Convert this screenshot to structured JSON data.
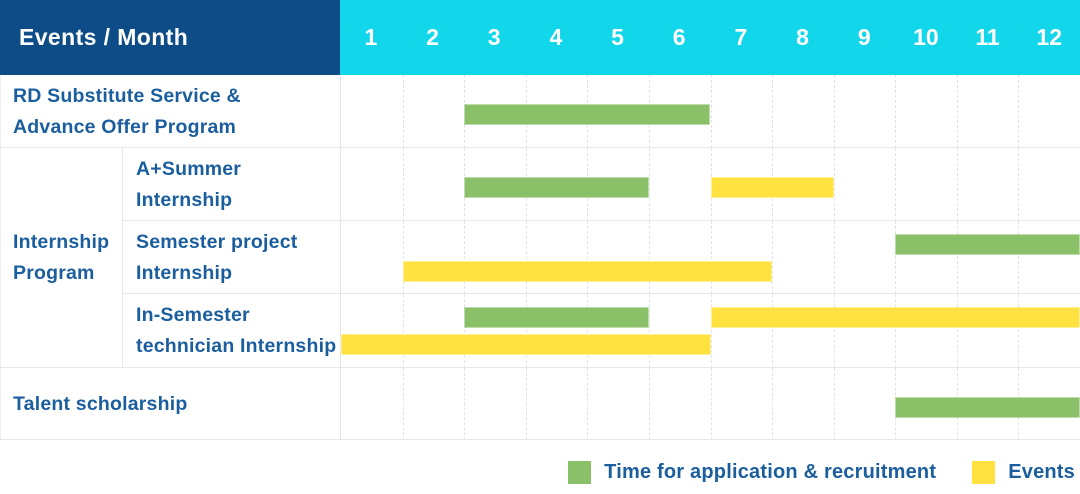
{
  "title": "Events / Month",
  "months": [
    "1",
    "2",
    "3",
    "4",
    "5",
    "6",
    "7",
    "8",
    "9",
    "10",
    "11",
    "12"
  ],
  "colors": {
    "header_bg": "#0d4c86",
    "header_text": "#ffffff",
    "months_bg": "#12d7ea",
    "text_blue": "#1b5e9e",
    "green": "#8ac168",
    "yellow": "#ffe23f",
    "grid": "#e7e7e7"
  },
  "legend": [
    {
      "swatch": "green",
      "label": "Time for application & recruitment"
    },
    {
      "swatch": "yellow",
      "label": "Events"
    }
  ],
  "chart_data": {
    "type": "gantt",
    "title": "Events / Month",
    "x_axis": {
      "unit": "month",
      "range": [
        1,
        12
      ],
      "ticks": [
        1,
        2,
        3,
        4,
        5,
        6,
        7,
        8,
        9,
        10,
        11,
        12
      ]
    },
    "grid": true,
    "legend_position": "bottom-right",
    "series_legend": {
      "green": "Time for application & recruitment",
      "yellow": "Events"
    },
    "group_label_lines": [
      "Internship",
      "Program"
    ],
    "rows": [
      {
        "group": "",
        "label": "RD Substitute Service & Advance Offer Program",
        "label_lines": [
          "RD Substitute Service &",
          "Advance Offer Program"
        ],
        "bars": [
          {
            "series": "Time for application & recruitment",
            "color": "green",
            "start_month": 3,
            "end_month": 6,
            "band": "single"
          }
        ]
      },
      {
        "group": "Internship Program",
        "label": "A+Summer Internship",
        "label_lines": [
          "A+Summer",
          "Internship"
        ],
        "bars": [
          {
            "series": "Time for application & recruitment",
            "color": "green",
            "start_month": 3,
            "end_month": 5,
            "band": "single"
          },
          {
            "series": "Events",
            "color": "yellow",
            "start_month": 7,
            "end_month": 8,
            "band": "single"
          }
        ]
      },
      {
        "group": "Internship Program",
        "label": "Semester project Internship",
        "label_lines": [
          "Semester project",
          "Internship"
        ],
        "bars": [
          {
            "series": "Time for application & recruitment",
            "color": "green",
            "start_month": 10,
            "end_month": 12,
            "band": "top"
          },
          {
            "series": "Events",
            "color": "yellow",
            "start_month": 2,
            "end_month": 7,
            "band": "bottom"
          }
        ]
      },
      {
        "group": "Internship Program",
        "label": "In-Semester technician Internship",
        "label_lines": [
          "In-Semester",
          "technician Internship"
        ],
        "bars": [
          {
            "series": "Time for application & recruitment",
            "color": "green",
            "start_month": 3,
            "end_month": 5,
            "band": "top"
          },
          {
            "series": "Events",
            "color": "yellow",
            "start_month": 7,
            "end_month": 12,
            "band": "top"
          },
          {
            "series": "Events",
            "color": "yellow",
            "start_month": 1,
            "end_month": 6,
            "band": "bottom"
          }
        ]
      },
      {
        "group": "",
        "label": "Talent scholarship",
        "label_lines": [
          "Talent scholarship"
        ],
        "bars": [
          {
            "series": "Time for application & recruitment",
            "color": "green",
            "start_month": 10,
            "end_month": 12,
            "band": "single"
          }
        ]
      }
    ]
  }
}
